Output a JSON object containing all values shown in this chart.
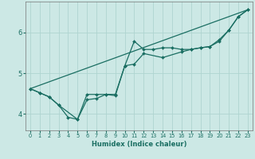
{
  "xlabel": "Humidex (Indice chaleur)",
  "background_color": "#cce8e5",
  "grid_color": "#afd4d0",
  "line_color": "#1a6e62",
  "xlim": [
    -0.5,
    23.5
  ],
  "ylim": [
    3.6,
    6.75
  ],
  "xticks": [
    0,
    1,
    2,
    3,
    4,
    5,
    6,
    7,
    8,
    9,
    10,
    11,
    12,
    13,
    14,
    15,
    16,
    17,
    18,
    19,
    20,
    21,
    22,
    23
  ],
  "yticks": [
    4,
    5,
    6
  ],
  "line1_x": [
    0,
    1,
    2,
    3,
    4,
    5,
    6,
    7,
    8,
    9,
    10,
    11,
    12,
    13,
    14,
    15,
    16,
    17,
    18,
    19,
    20,
    21,
    22,
    23
  ],
  "line1_y": [
    4.62,
    4.52,
    4.42,
    4.22,
    3.92,
    3.87,
    4.48,
    4.48,
    4.48,
    4.48,
    5.18,
    5.78,
    5.58,
    5.58,
    5.62,
    5.62,
    5.58,
    5.58,
    5.62,
    5.65,
    5.78,
    6.05,
    6.38,
    6.55
  ],
  "line2_x": [
    0,
    1,
    2,
    3,
    5,
    6,
    7,
    8,
    9,
    10,
    11,
    12,
    14,
    16,
    17,
    18,
    19,
    20,
    21,
    22,
    23
  ],
  "line2_y": [
    4.62,
    4.52,
    4.42,
    4.22,
    3.87,
    4.35,
    4.38,
    4.48,
    4.45,
    5.18,
    5.22,
    5.48,
    5.38,
    5.52,
    5.58,
    5.62,
    5.65,
    5.82,
    6.05,
    6.38,
    6.55
  ],
  "trend_x": [
    0,
    23
  ],
  "trend_y": [
    4.62,
    6.55
  ],
  "tick_color": "#1a6e62",
  "xlabel_fontsize": 6.0,
  "xtick_fontsize": 4.8,
  "ytick_fontsize": 6.0
}
